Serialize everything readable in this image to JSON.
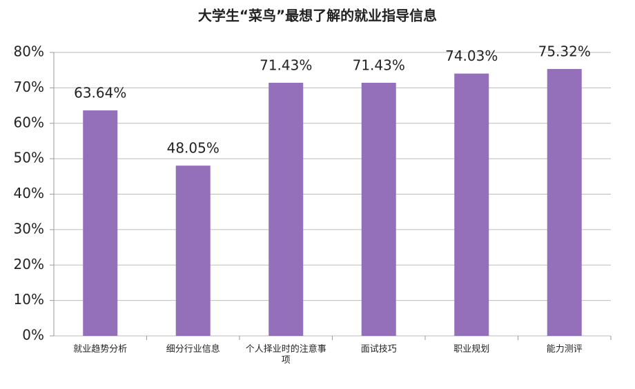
{
  "chart_data": {
    "type": "bar",
    "title": "大学生“菜鸟”最想了解的就业指导信息",
    "categories": [
      "就业趋势分析",
      "细分行业信息",
      "个人择业时的注意事项",
      "面试技巧",
      "职业规划",
      "能力测评"
    ],
    "values": [
      63.64,
      48.05,
      71.43,
      71.43,
      74.03,
      75.32
    ],
    "value_labels": [
      "63.64%",
      "48.05%",
      "71.43%",
      "71.43%",
      "74.03%",
      "75.32%"
    ],
    "color": "#946fba",
    "ylim": [
      0,
      80
    ],
    "yticks": [
      {
        "value": 0,
        "label": "0%"
      },
      {
        "value": 10,
        "label": "10%"
      },
      {
        "value": 20,
        "label": "20%"
      },
      {
        "value": 30,
        "label": "30%"
      },
      {
        "value": 40,
        "label": "40%"
      },
      {
        "value": 50,
        "label": "50%"
      },
      {
        "value": 60,
        "label": "60%"
      },
      {
        "value": 70,
        "label": "70%"
      },
      {
        "value": 80,
        "label": "80%"
      }
    ],
    "grid": true
  }
}
